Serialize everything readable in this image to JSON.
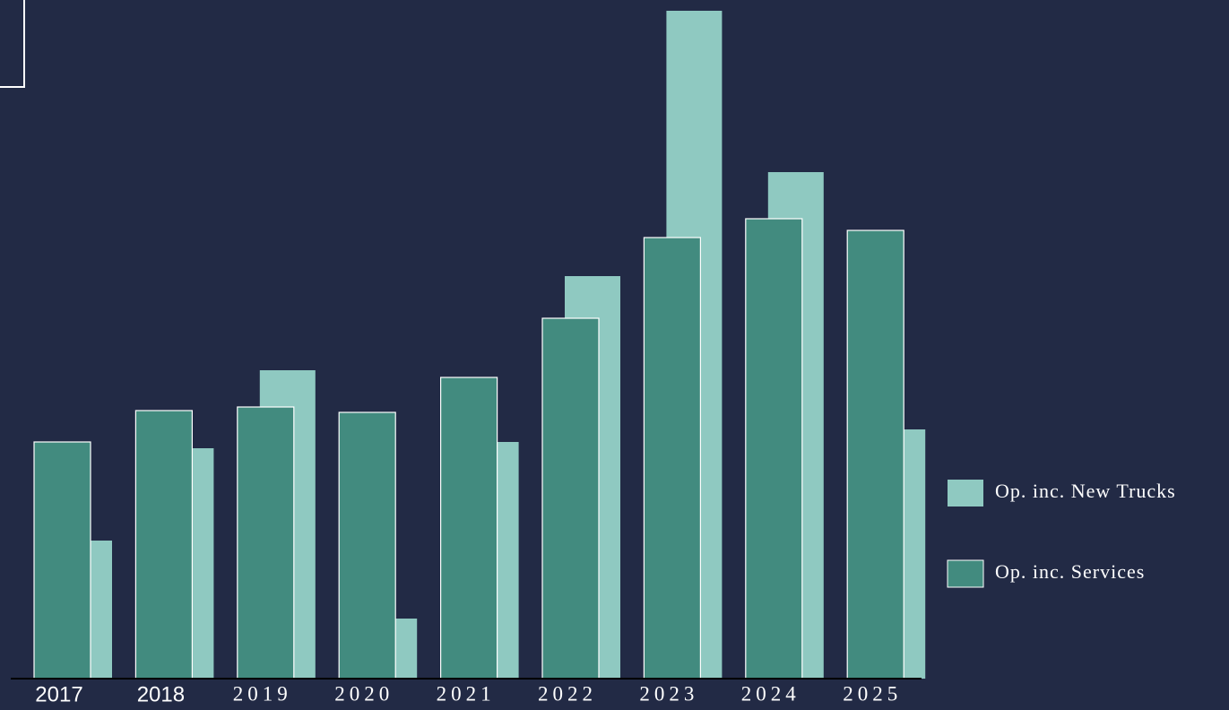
{
  "chart_data": {
    "type": "bar",
    "categories": [
      "2017",
      "2018",
      "2019",
      "2020",
      "2021",
      "2022",
      "2023",
      "2024",
      "2025"
    ],
    "series": [
      {
        "name": "Op. inc. New Trucks",
        "color": "#8fc9c1",
        "values": [
          154,
          257,
          344,
          67,
          264,
          449,
          745,
          565,
          278
        ]
      },
      {
        "name": "Op. inc. Services",
        "color": "#428b7f",
        "values": [
          264,
          299,
          303,
          297,
          336,
          402,
          492,
          513,
          500
        ]
      }
    ]
  }
}
